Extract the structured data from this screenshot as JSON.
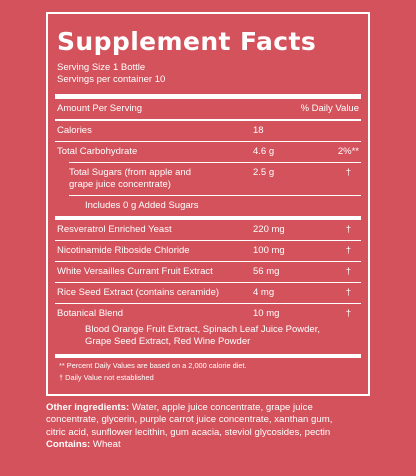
{
  "facts": {
    "title": "Supplement Facts",
    "serving_size": "Serving Size 1 Bottle",
    "servings_per_container": "Servings per container 10",
    "header": {
      "amount_per_serving": "Amount Per Serving",
      "daily_value": "% Daily Value"
    },
    "rows": [
      {
        "name": "Calories",
        "amount": "18",
        "dv": ""
      },
      {
        "name": "Total Carbohydrate",
        "amount": "4.6 g",
        "dv": "2%**"
      },
      {
        "name_line1": "Total Sugars (from apple and",
        "name_line2": "grape juice concentrate)",
        "amount": "2.5 g",
        "dv": "†"
      },
      {
        "name": "Includes 0 g Added Sugars"
      },
      {
        "name": "Resveratrol Enriched Yeast",
        "amount": "220 mg",
        "dv": "†"
      },
      {
        "name": "Nicotinamide Riboside Chloride",
        "amount": "100 mg",
        "dv": "†"
      },
      {
        "name": "White Versailles Currant Fruit Extract",
        "amount": "56 mg",
        "dv": "†"
      },
      {
        "name": "Rice Seed Extract (contains ceramide)",
        "amount": "4 mg",
        "dv": "†"
      },
      {
        "name": "Botanical Blend",
        "amount": "10 mg",
        "dv": "†"
      }
    ],
    "blend_description": [
      "Blood Orange Fruit Extract, Spinach Leaf Juice Powder,",
      "Grape Seed Extract, Red Wine Powder"
    ],
    "footnotes": [
      "** Percent Daily Values are based on a 2,000 calorie diet.",
      "† Daily Value not established"
    ]
  },
  "other_ingredients": {
    "label": "Other ingredients:",
    "text_line1": " Water, apple juice concentrate, grape juice",
    "text_line2": "concentrate, glycerin, purple carrot juice concentrate, xanthan gum,",
    "text_line3": "citric acid, sunflower lecithin, gum acacia, steviol glycosides, pectin"
  },
  "contains": {
    "label": "Contains:",
    "text": " Wheat"
  },
  "colors": {
    "background": "#d4525c",
    "text": "#ffffff"
  }
}
